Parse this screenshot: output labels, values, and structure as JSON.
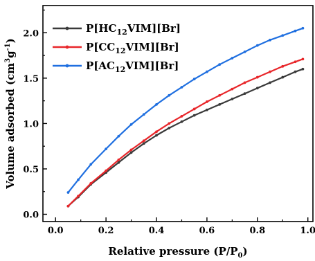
{
  "chart_data": {
    "type": "line",
    "xlabel_main": "Relative pressure (P/P",
    "xlabel_sub": "0",
    "xlabel_close": ")",
    "ylabel_main": "Volume adsorbed (cm",
    "ylabel_sup1": "3",
    "ylabel_mid": "g",
    "ylabel_sup2": "-1",
    "ylabel_close": ")",
    "xlim": [
      -0.05,
      1.02
    ],
    "ylim": [
      -0.08,
      2.3
    ],
    "x_ticks": [
      0.0,
      0.2,
      0.4,
      0.6,
      0.8,
      1.0
    ],
    "x_tick_labels": [
      "0.0",
      "0.2",
      "0.4",
      "0.6",
      "0.8",
      "1.0"
    ],
    "y_ticks": [
      0.0,
      0.5,
      1.0,
      1.5,
      2.0
    ],
    "y_tick_labels": [
      "0.0",
      "0.5",
      "1.0",
      "1.5",
      "2.0"
    ],
    "grid": false,
    "legend_position": "top-left",
    "series": [
      {
        "name_main": "P[HC",
        "name_sub": "12",
        "name_tail": "VIM][Br]",
        "color": "#3a3a3a",
        "x": [
          0.05,
          0.09,
          0.14,
          0.2,
          0.25,
          0.3,
          0.35,
          0.4,
          0.45,
          0.5,
          0.55,
          0.6,
          0.65,
          0.7,
          0.75,
          0.8,
          0.85,
          0.9,
          0.95,
          0.98
        ],
        "y": [
          0.09,
          0.19,
          0.33,
          0.46,
          0.57,
          0.68,
          0.78,
          0.87,
          0.95,
          1.02,
          1.09,
          1.15,
          1.21,
          1.27,
          1.33,
          1.39,
          1.45,
          1.51,
          1.57,
          1.6
        ]
      },
      {
        "name_main": "P[CC",
        "name_sub": "12",
        "name_tail": "VIM][Br]",
        "color": "#e8262a",
        "x": [
          0.05,
          0.09,
          0.14,
          0.2,
          0.25,
          0.3,
          0.35,
          0.4,
          0.45,
          0.5,
          0.55,
          0.6,
          0.65,
          0.7,
          0.75,
          0.8,
          0.85,
          0.9,
          0.95,
          0.98
        ],
        "y": [
          0.09,
          0.2,
          0.34,
          0.48,
          0.6,
          0.71,
          0.81,
          0.91,
          1.0,
          1.08,
          1.16,
          1.24,
          1.31,
          1.38,
          1.45,
          1.51,
          1.57,
          1.63,
          1.68,
          1.71
        ]
      },
      {
        "name_main": "P[AC",
        "name_sub": "12",
        "name_tail": "VIM][Br]",
        "color": "#1f6fe0",
        "x": [
          0.05,
          0.09,
          0.14,
          0.2,
          0.25,
          0.3,
          0.35,
          0.4,
          0.45,
          0.5,
          0.55,
          0.6,
          0.65,
          0.7,
          0.75,
          0.8,
          0.85,
          0.9,
          0.95,
          0.98
        ],
        "y": [
          0.24,
          0.38,
          0.55,
          0.72,
          0.86,
          0.99,
          1.1,
          1.21,
          1.31,
          1.4,
          1.49,
          1.57,
          1.65,
          1.72,
          1.79,
          1.86,
          1.92,
          1.97,
          2.02,
          2.05
        ]
      }
    ]
  }
}
